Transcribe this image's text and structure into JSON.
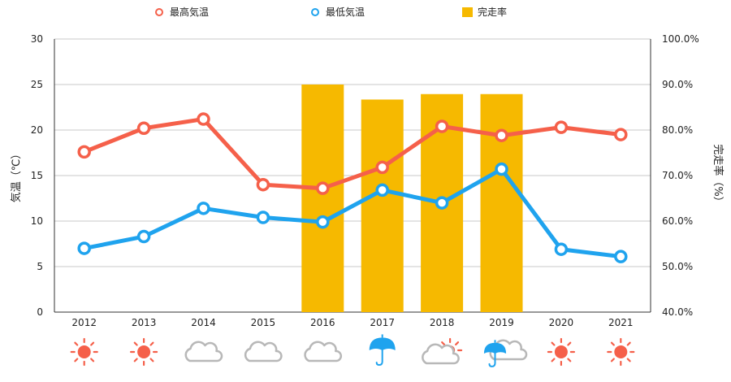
{
  "chart_data": {
    "type": "bar+line",
    "categories": [
      "2012",
      "2013",
      "2014",
      "2015",
      "2016",
      "2017",
      "2018",
      "2019",
      "2020",
      "2021"
    ],
    "series": [
      {
        "name": "最高気温",
        "type": "line",
        "axis": "left",
        "color": "#f5604a",
        "values": [
          17.6,
          20.2,
          21.2,
          14.0,
          13.6,
          15.9,
          20.4,
          19.4,
          20.3,
          19.5
        ]
      },
      {
        "name": "最低気温",
        "type": "line",
        "axis": "left",
        "color": "#1fa3ee",
        "values": [
          7.0,
          8.3,
          11.4,
          10.4,
          9.9,
          13.4,
          12.0,
          15.7,
          6.9,
          6.1
        ]
      },
      {
        "name": "完走率",
        "type": "bar",
        "axis": "right",
        "color": "#f6b900",
        "values": [
          null,
          null,
          null,
          null,
          90.0,
          86.7,
          87.9,
          87.9,
          null,
          null
        ]
      }
    ],
    "ylabel": "気温（℃）",
    "y2label": "完走率（%）",
    "ylim": [
      0,
      30
    ],
    "y2lim": [
      40,
      100
    ],
    "yticks": [
      "0",
      "5",
      "10",
      "15",
      "20",
      "25",
      "30"
    ],
    "y2ticks": [
      "40.0%",
      "50.0%",
      "60.0%",
      "70.0%",
      "80.0%",
      "90.0%",
      "100.0%"
    ],
    "grid": true,
    "legend_position": "top",
    "weather": [
      "sun",
      "sun",
      "cloud",
      "cloud",
      "cloud",
      "umbrella",
      "cloud-sun",
      "umbrella-cloud",
      "sun",
      "sun"
    ]
  }
}
